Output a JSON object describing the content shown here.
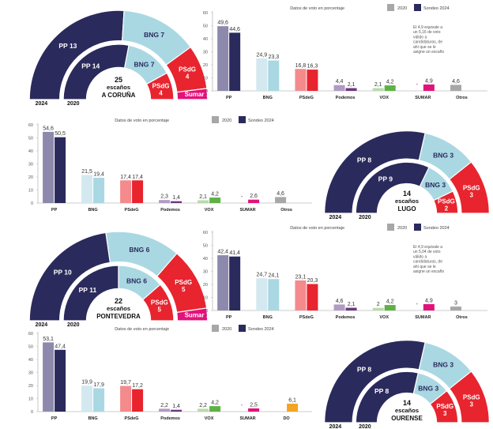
{
  "legend": {
    "caption": "Datos de voto en porcentaje",
    "old_label": "2020",
    "new_label": "Sondeo 2024"
  },
  "colors": {
    "PP_old": "#8d89ad",
    "PP_new": "#2b2a5c",
    "BNG_old": "#d3e9ef",
    "BNG_new": "#a9d8e3",
    "PSdG_old": "#f48a8c",
    "PSdG_new": "#e8242e",
    "Podemos_old": "#b19ac3",
    "Podemos_new": "#6d3680",
    "VOX_old": "#b7dcaa",
    "VOX_new": "#5eb243",
    "SUMAR_old": "#f7a6cf",
    "SUMAR_new": "#e2127b",
    "DO_new": "#f3a423",
    "Otros_old": "#a7a7a7",
    "axis": "#bbbbbb",
    "pp_hemi": "#2b2a5c",
    "bng_hemi": "#a9d8e3",
    "psdg_hemi": "#e8242e",
    "sumar_hemi": "#e2127b"
  },
  "chart_data": [
    {
      "id": "coruna_bars",
      "type": "bar",
      "ylim": [
        0,
        60
      ],
      "yticks": [
        0,
        10,
        20,
        30,
        40,
        50,
        60
      ],
      "categories": [
        "PP",
        "BNG",
        "PSdeG",
        "Podemos",
        "VOX",
        "SUMAR",
        "Otros"
      ],
      "series": [
        {
          "name": "2020",
          "values": [
            49.6,
            24.9,
            16.8,
            4.4,
            2.1,
            null,
            4.6
          ],
          "labels": [
            "49,6",
            "24,9",
            "16,8",
            "4,4",
            "2,1",
            "-",
            "4,6"
          ]
        },
        {
          "name": "Sondeo 2024",
          "values": [
            44.6,
            23.3,
            16.3,
            2.1,
            4.2,
            4.9,
            null
          ],
          "labels": [
            "44,6",
            "23,3",
            "16,3",
            "2,1",
            "4,2",
            "4,9",
            ""
          ]
        }
      ],
      "note": "El 4,9 equivale a un 5,16 de voto válido a candidaturas, de ahí que se le asigne un escaño"
    },
    {
      "id": "lugo_bars",
      "type": "bar",
      "ylim": [
        0,
        60
      ],
      "yticks": [
        0,
        10,
        20,
        30,
        40,
        50,
        60
      ],
      "categories": [
        "PP",
        "BNG",
        "PSdeG",
        "Podemos",
        "VOX",
        "SUMAR",
        "Otros"
      ],
      "series": [
        {
          "name": "2020",
          "values": [
            54.6,
            21.5,
            17.4,
            2.3,
            2.1,
            null,
            4.6
          ],
          "labels": [
            "54,6",
            "21,5",
            "17,4",
            "2,3",
            "2,1",
            "-",
            "4,6"
          ]
        },
        {
          "name": "Sondeo 2024",
          "values": [
            50.5,
            19.4,
            17.4,
            1.4,
            4.2,
            2.6,
            null
          ],
          "labels": [
            "50,5",
            "19,4",
            "17,4",
            "1,4",
            "4,2",
            "2,6",
            ""
          ]
        }
      ]
    },
    {
      "id": "pontevedra_bars",
      "type": "bar",
      "ylim": [
        0,
        60
      ],
      "yticks": [
        0,
        10,
        20,
        30,
        40,
        50,
        60
      ],
      "categories": [
        "PP",
        "BNG",
        "PSdeG",
        "Podemos",
        "VOX",
        "SUMAR",
        "Otros"
      ],
      "series": [
        {
          "name": "2020",
          "values": [
            42.4,
            24.7,
            23.1,
            4.6,
            2,
            null,
            3
          ],
          "labels": [
            "42,4",
            "24,7",
            "23,1",
            "4,6",
            "2",
            "-",
            "3"
          ]
        },
        {
          "name": "Sondeo 2024",
          "values": [
            41.4,
            24.1,
            20.3,
            2.1,
            4.2,
            4.9,
            null
          ],
          "labels": [
            "41,4",
            "24,1",
            "20,3",
            "2,1",
            "4,2",
            "4,9",
            ""
          ]
        }
      ],
      "note": "El 4,9 equivale a un 5,04 de voto válido a candidaturas, de ahí que se le asigne un escaño"
    },
    {
      "id": "ourense_bars",
      "type": "bar",
      "ylim": [
        0,
        60
      ],
      "yticks": [
        0,
        10,
        20,
        30,
        40,
        50,
        60
      ],
      "categories": [
        "PP",
        "BNG",
        "PSdeG",
        "Podemos",
        "VOX",
        "SUMAR",
        "DO"
      ],
      "series": [
        {
          "name": "2020",
          "values": [
            53.1,
            19.9,
            19.7,
            2.2,
            2.2,
            null,
            null
          ],
          "labels": [
            "53,1",
            "19,9",
            "19,7",
            "2,2",
            "2,2",
            "-",
            ""
          ]
        },
        {
          "name": "Sondeo 2024",
          "values": [
            47.4,
            17.9,
            17.2,
            1.4,
            4.2,
            2.5,
            6.1
          ],
          "labels": [
            "47,4",
            "17,9",
            "17,2",
            "1,4",
            "4,2",
            "2,5",
            "6,1"
          ]
        }
      ]
    }
  ],
  "hemicycles": [
    {
      "id": "coruna",
      "total_label": "25",
      "seats_label": "escaños",
      "province": "A CORUÑA",
      "outer": [
        {
          "party": "PP",
          "seats": 13,
          "label": "PP 13"
        },
        {
          "party": "BNG",
          "seats": 7,
          "label": "BNG 7"
        },
        {
          "party": "PSdG",
          "seats": 4,
          "label": "PSdG 4"
        },
        {
          "party": "SUMAR",
          "seats": 1,
          "label": "Sumar 1"
        }
      ],
      "inner": [
        {
          "party": "PP",
          "seats": 14,
          "label": "PP 14"
        },
        {
          "party": "BNG",
          "seats": 7,
          "label": "BNG 7"
        },
        {
          "party": "PSdG",
          "seats": 4,
          "label": "PSdG 4"
        }
      ],
      "year_outer": "2024",
      "year_inner": "2020"
    },
    {
      "id": "lugo",
      "total_label": "14",
      "seats_label": "escaños",
      "province": "LUGO",
      "outer": [
        {
          "party": "PP",
          "seats": 8,
          "label": "PP 8"
        },
        {
          "party": "BNG",
          "seats": 3,
          "label": "BNG 3"
        },
        {
          "party": "PSdG",
          "seats": 3,
          "label": "PSdG 3"
        }
      ],
      "inner": [
        {
          "party": "PP",
          "seats": 9,
          "label": "PP 9"
        },
        {
          "party": "BNG",
          "seats": 3,
          "label": "BNG 3"
        },
        {
          "party": "PSdG",
          "seats": 2,
          "label": "PSdG 2"
        }
      ],
      "year_outer": "2024",
      "year_inner": "2020"
    },
    {
      "id": "pontevedra",
      "total_label": "22",
      "seats_label": "escaños",
      "province": "PONTEVEDRA",
      "outer": [
        {
          "party": "PP",
          "seats": 10,
          "label": "PP 10"
        },
        {
          "party": "BNG",
          "seats": 6,
          "label": "BNG 6"
        },
        {
          "party": "PSdG",
          "seats": 5,
          "label": "PSdG 5"
        },
        {
          "party": "SUMAR",
          "seats": 1,
          "label": "Sumar 1"
        }
      ],
      "inner": [
        {
          "party": "PP",
          "seats": 11,
          "label": "PP 11"
        },
        {
          "party": "BNG",
          "seats": 6,
          "label": "BNG 6"
        },
        {
          "party": "PSdG",
          "seats": 5,
          "label": "PSdG 5"
        }
      ],
      "year_outer": "2024",
      "year_inner": "2020"
    },
    {
      "id": "ourense",
      "total_label": "14",
      "seats_label": "escaños",
      "province": "OURENSE",
      "outer": [
        {
          "party": "PP",
          "seats": 8,
          "label": "PP 8"
        },
        {
          "party": "BNG",
          "seats": 3,
          "label": "BNG 3"
        },
        {
          "party": "PSdG",
          "seats": 3,
          "label": "PSdG 3"
        }
      ],
      "inner": [
        {
          "party": "PP",
          "seats": 8,
          "label": "PP 8"
        },
        {
          "party": "BNG",
          "seats": 3,
          "label": "BNG 3"
        },
        {
          "party": "PSdG",
          "seats": 3,
          "label": "PSdG 3"
        }
      ],
      "year_outer": "2024",
      "year_inner": "2020"
    }
  ]
}
